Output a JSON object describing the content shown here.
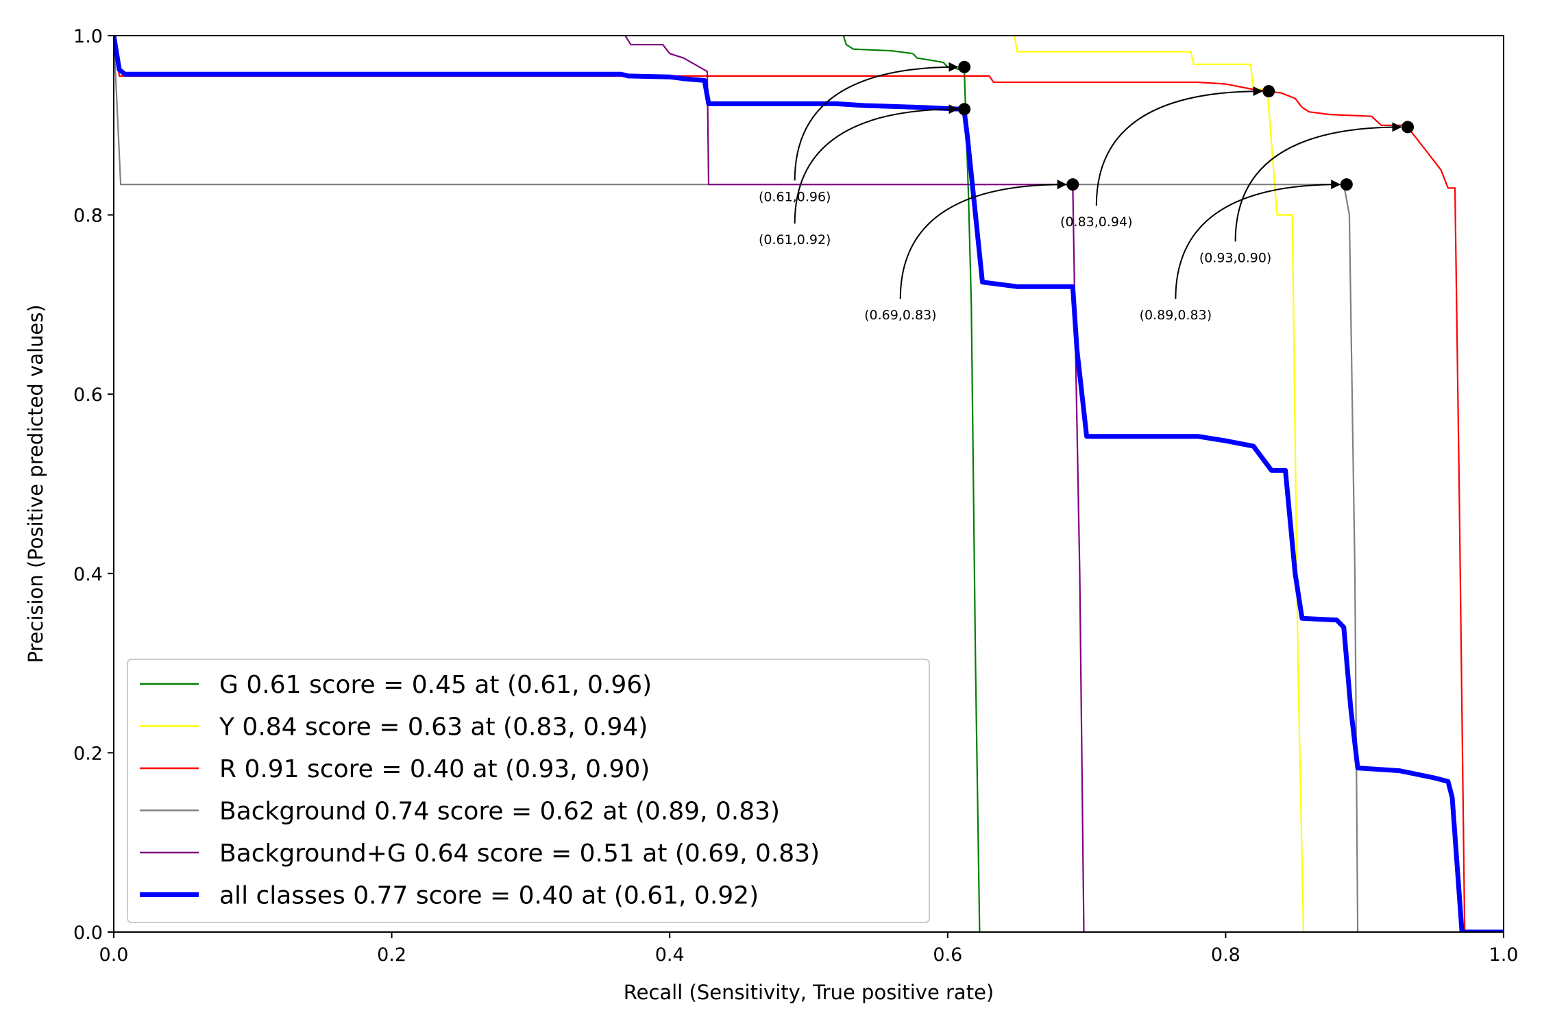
{
  "chart_data": {
    "type": "line",
    "xlabel": "Recall (Sensitivity, True positive rate)",
    "ylabel": "Precision (Positive predicted values)",
    "xlim": [
      0,
      1
    ],
    "ylim": [
      0,
      1
    ],
    "x_ticks": [
      "0.0",
      "0.2",
      "0.4",
      "0.6",
      "0.8",
      "1.0"
    ],
    "y_ticks": [
      "0.0",
      "0.2",
      "0.4",
      "0.6",
      "0.8",
      "1.0"
    ],
    "grid": false,
    "legend_position": "lower-left",
    "series": [
      {
        "name": "G 0.61 score = 0.45 at (0.61, 0.96)",
        "color": "#008000",
        "points": [
          [
            0.525,
            1.0
          ],
          [
            0.527,
            0.99
          ],
          [
            0.532,
            0.985
          ],
          [
            0.56,
            0.983
          ],
          [
            0.575,
            0.98
          ],
          [
            0.578,
            0.975
          ],
          [
            0.59,
            0.972
          ],
          [
            0.597,
            0.97
          ],
          [
            0.6,
            0.965
          ],
          [
            0.607,
            0.963
          ],
          [
            0.612,
            0.96
          ],
          [
            0.615,
            0.82
          ],
          [
            0.617,
            0.7
          ],
          [
            0.62,
            0.3
          ],
          [
            0.623,
            0.0
          ]
        ]
      },
      {
        "name": "Y 0.84 score = 0.63 at (0.83, 0.94)",
        "color": "#ffff00",
        "points": [
          [
            0.648,
            1.0
          ],
          [
            0.65,
            0.982
          ],
          [
            0.775,
            0.982
          ],
          [
            0.777,
            0.968
          ],
          [
            0.818,
            0.968
          ],
          [
            0.82,
            0.94
          ],
          [
            0.83,
            0.94
          ],
          [
            0.833,
            0.88
          ],
          [
            0.837,
            0.8
          ],
          [
            0.848,
            0.8
          ],
          [
            0.85,
            0.55
          ],
          [
            0.852,
            0.3
          ],
          [
            0.856,
            0.0
          ]
        ]
      },
      {
        "name": "R 0.91 score = 0.40 at (0.93, 0.90)",
        "color": "#ff0000",
        "points": [
          [
            0.0,
            1.0
          ],
          [
            0.004,
            0.955
          ],
          [
            0.4,
            0.955
          ],
          [
            0.63,
            0.955
          ],
          [
            0.633,
            0.948
          ],
          [
            0.78,
            0.948
          ],
          [
            0.8,
            0.946
          ],
          [
            0.82,
            0.94
          ],
          [
            0.84,
            0.936
          ],
          [
            0.85,
            0.93
          ],
          [
            0.855,
            0.92
          ],
          [
            0.86,
            0.915
          ],
          [
            0.875,
            0.912
          ],
          [
            0.905,
            0.91
          ],
          [
            0.912,
            0.9
          ],
          [
            0.93,
            0.9
          ],
          [
            0.935,
            0.89
          ],
          [
            0.94,
            0.88
          ],
          [
            0.945,
            0.87
          ],
          [
            0.95,
            0.86
          ],
          [
            0.955,
            0.85
          ],
          [
            0.96,
            0.83
          ],
          [
            0.965,
            0.83
          ],
          [
            0.968,
            0.5
          ],
          [
            0.972,
            0.0
          ]
        ]
      },
      {
        "name": "Background 0.74 score = 0.62 at (0.89, 0.83)",
        "color": "#808080",
        "points": [
          [
            0.0,
            1.0
          ],
          [
            0.005,
            0.834
          ],
          [
            0.885,
            0.834
          ],
          [
            0.889,
            0.8
          ],
          [
            0.893,
            0.4
          ],
          [
            0.895,
            0.0
          ]
        ]
      },
      {
        "name": "Background+G 0.64 score = 0.51 at (0.69, 0.83)",
        "color": "#800080",
        "points": [
          [
            0.368,
            1.0
          ],
          [
            0.372,
            0.99
          ],
          [
            0.395,
            0.99
          ],
          [
            0.4,
            0.98
          ],
          [
            0.41,
            0.975
          ],
          [
            0.418,
            0.968
          ],
          [
            0.427,
            0.96
          ],
          [
            0.428,
            0.834
          ],
          [
            0.69,
            0.834
          ],
          [
            0.692,
            0.65
          ],
          [
            0.695,
            0.4
          ],
          [
            0.698,
            0.0
          ]
        ]
      },
      {
        "name": "all classes 0.77 score = 0.40 at (0.61, 0.92)",
        "color": "#0000ff",
        "thick": true,
        "points": [
          [
            0.0,
            1.0
          ],
          [
            0.004,
            0.962
          ],
          [
            0.008,
            0.957
          ],
          [
            0.365,
            0.957
          ],
          [
            0.37,
            0.955
          ],
          [
            0.4,
            0.954
          ],
          [
            0.41,
            0.952
          ],
          [
            0.425,
            0.95
          ],
          [
            0.428,
            0.924
          ],
          [
            0.52,
            0.924
          ],
          [
            0.54,
            0.922
          ],
          [
            0.58,
            0.92
          ],
          [
            0.61,
            0.918
          ],
          [
            0.612,
            0.915
          ],
          [
            0.614,
            0.89
          ],
          [
            0.62,
            0.8
          ],
          [
            0.625,
            0.725
          ],
          [
            0.65,
            0.72
          ],
          [
            0.69,
            0.72
          ],
          [
            0.693,
            0.65
          ],
          [
            0.7,
            0.553
          ],
          [
            0.78,
            0.553
          ],
          [
            0.8,
            0.548
          ],
          [
            0.82,
            0.542
          ],
          [
            0.833,
            0.515
          ],
          [
            0.843,
            0.515
          ],
          [
            0.85,
            0.4
          ],
          [
            0.855,
            0.35
          ],
          [
            0.88,
            0.348
          ],
          [
            0.885,
            0.34
          ],
          [
            0.89,
            0.25
          ],
          [
            0.895,
            0.183
          ],
          [
            0.925,
            0.18
          ],
          [
            0.95,
            0.172
          ],
          [
            0.96,
            0.168
          ],
          [
            0.963,
            0.15
          ],
          [
            0.97,
            0.0
          ],
          [
            1.0,
            0.0
          ]
        ]
      }
    ],
    "markers": [
      {
        "x": 0.612,
        "y": 0.965
      },
      {
        "x": 0.612,
        "y": 0.918
      },
      {
        "x": 0.69,
        "y": 0.834
      },
      {
        "x": 0.831,
        "y": 0.938
      },
      {
        "x": 0.887,
        "y": 0.834
      },
      {
        "x": 0.931,
        "y": 0.898
      }
    ],
    "annotations": [
      {
        "text": "(0.61,0.96)",
        "x": 0.612,
        "y": 0.965,
        "text_x": 0.49,
        "text_y": 0.82
      },
      {
        "text": "(0.61,0.92)",
        "x": 0.612,
        "y": 0.918,
        "text_x": 0.49,
        "text_y": 0.772
      },
      {
        "text": "(0.69,0.83)",
        "x": 0.69,
        "y": 0.834,
        "text_x": 0.566,
        "text_y": 0.688
      },
      {
        "text": "(0.83,0.94)",
        "x": 0.831,
        "y": 0.938,
        "text_x": 0.707,
        "text_y": 0.792
      },
      {
        "text": "(0.89,0.83)",
        "x": 0.887,
        "y": 0.834,
        "text_x": 0.764,
        "text_y": 0.688
      },
      {
        "text": "(0.93,0.90)",
        "x": 0.931,
        "y": 0.898,
        "text_x": 0.807,
        "text_y": 0.752
      }
    ]
  }
}
